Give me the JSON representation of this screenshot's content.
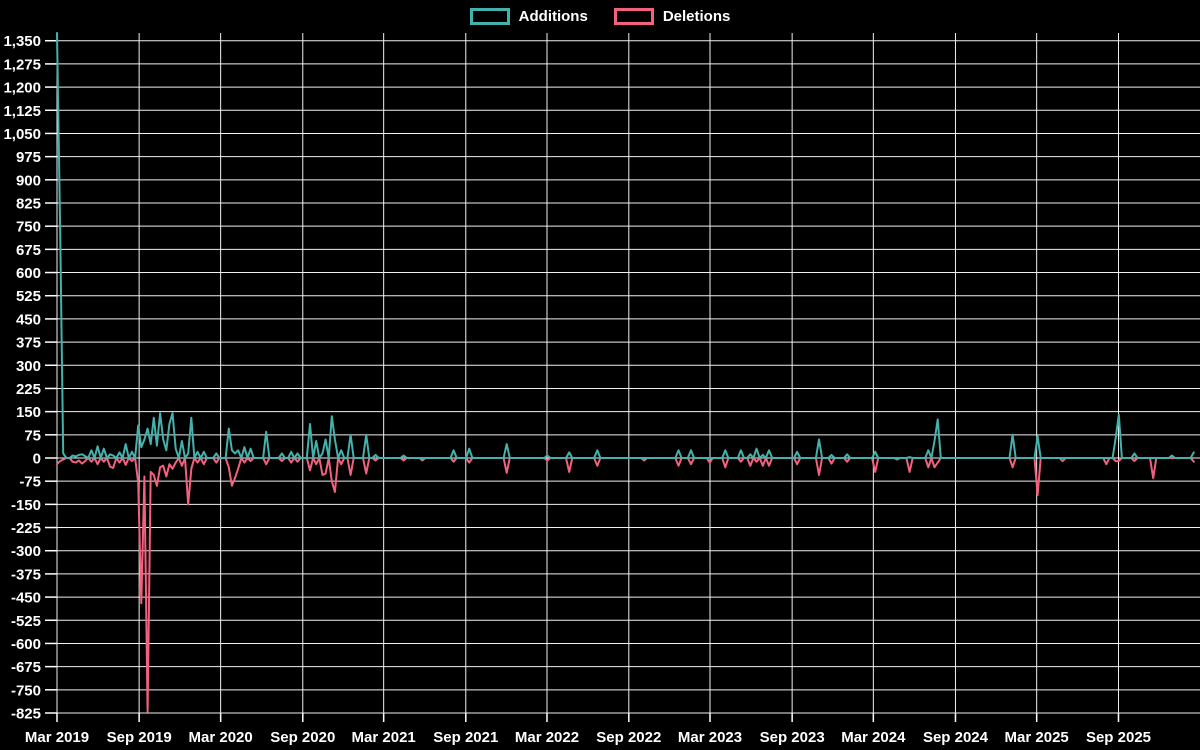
{
  "chart_data": {
    "type": "line",
    "grid": true,
    "legend_position": "top-center",
    "background_color": "#000000",
    "grid_color": "#f0f0f0",
    "text_color": "#ffffff",
    "x_axis": {
      "tick_labels": [
        "Mar 2019",
        "Sep 2019",
        "Mar 2020",
        "Sep 2020",
        "Mar 2021",
        "Sep 2021",
        "Mar 2022",
        "Sep 2022",
        "Mar 2023",
        "Sep 2023",
        "Mar 2024",
        "Sep 2024",
        "Mar 2025",
        "Sep 2025"
      ],
      "tick_weeks": [
        0,
        26.3,
        52.4,
        78.7,
        104.6,
        130.9,
        156.9,
        183.1,
        209.1,
        235.4,
        261.4,
        287.7,
        313.7,
        339.9
      ],
      "weeks_span": 366
    },
    "y_axis": {
      "min": -825,
      "max": 1350,
      "step": 75,
      "tick_labels": [
        "1,350",
        "1,275",
        "1,200",
        "1,125",
        "1,050",
        "975",
        "900",
        "825",
        "750",
        "675",
        "600",
        "525",
        "450",
        "375",
        "300",
        "225",
        "150",
        "75",
        "0",
        "-75",
        "-150",
        "-225",
        "-300",
        "-375",
        "-450",
        "-525",
        "-600",
        "-675",
        "-750",
        "-825"
      ]
    },
    "weeks": 365,
    "series": [
      {
        "name": "Additions",
        "color": "#44B2AC",
        "points": [
          [
            0,
            1375
          ],
          [
            1,
            750
          ],
          [
            2,
            15
          ],
          [
            5,
            8
          ],
          [
            6,
            5
          ],
          [
            7,
            10
          ],
          [
            8,
            12
          ],
          [
            9,
            6
          ],
          [
            11,
            25
          ],
          [
            13,
            38
          ],
          [
            15,
            30
          ],
          [
            17,
            12
          ],
          [
            18,
            8
          ],
          [
            20,
            18
          ],
          [
            22,
            45
          ],
          [
            24,
            20
          ],
          [
            26,
            105
          ],
          [
            27,
            35
          ],
          [
            28,
            60
          ],
          [
            29,
            95
          ],
          [
            30,
            45
          ],
          [
            31,
            130
          ],
          [
            32,
            40
          ],
          [
            33,
            145
          ],
          [
            34,
            60
          ],
          [
            35,
            25
          ],
          [
            36,
            110
          ],
          [
            37,
            145
          ],
          [
            38,
            30
          ],
          [
            40,
            55
          ],
          [
            42,
            15
          ],
          [
            43,
            130
          ],
          [
            45,
            20
          ],
          [
            47,
            20
          ],
          [
            51,
            15
          ],
          [
            55,
            95
          ],
          [
            56,
            25
          ],
          [
            57,
            15
          ],
          [
            58,
            25
          ],
          [
            60,
            35
          ],
          [
            62,
            30
          ],
          [
            67,
            85
          ],
          [
            72,
            15
          ],
          [
            75,
            20
          ],
          [
            77,
            15
          ],
          [
            81,
            110
          ],
          [
            83,
            55
          ],
          [
            85,
            15
          ],
          [
            86,
            60
          ],
          [
            88,
            135
          ],
          [
            89,
            60
          ],
          [
            91,
            25
          ],
          [
            94,
            75
          ],
          [
            99,
            75
          ],
          [
            102,
            10
          ],
          [
            111,
            8
          ],
          [
            127,
            25
          ],
          [
            132,
            30
          ],
          [
            144,
            45
          ],
          [
            157,
            8
          ],
          [
            164,
            18
          ],
          [
            173,
            25
          ],
          [
            199,
            25
          ],
          [
            203,
            25
          ],
          [
            214,
            25
          ],
          [
            219,
            25
          ],
          [
            222,
            12
          ],
          [
            224,
            30
          ],
          [
            226,
            10
          ],
          [
            228,
            25
          ],
          [
            237,
            20
          ],
          [
            244,
            60
          ],
          [
            248,
            10
          ],
          [
            253,
            12
          ],
          [
            262,
            20
          ],
          [
            273,
            3
          ],
          [
            279,
            25
          ],
          [
            281,
            55
          ],
          [
            282,
            125
          ],
          [
            306,
            75
          ],
          [
            314,
            70
          ],
          [
            339,
            65
          ],
          [
            340,
            140
          ],
          [
            345,
            15
          ],
          [
            357,
            8
          ],
          [
            364,
            18
          ]
        ]
      },
      {
        "name": "Deletions",
        "color": "#F2617E",
        "points": [
          [
            0,
            -20
          ],
          [
            1,
            -10
          ],
          [
            2,
            -5
          ],
          [
            5,
            -12
          ],
          [
            6,
            -15
          ],
          [
            7,
            -8
          ],
          [
            8,
            -18
          ],
          [
            9,
            -10
          ],
          [
            11,
            -12
          ],
          [
            13,
            -20
          ],
          [
            15,
            -12
          ],
          [
            17,
            -28
          ],
          [
            18,
            -32
          ],
          [
            20,
            -15
          ],
          [
            22,
            -22
          ],
          [
            24,
            -10
          ],
          [
            26,
            -80
          ],
          [
            27,
            -470
          ],
          [
            28,
            -60
          ],
          [
            29,
            -820
          ],
          [
            30,
            -45
          ],
          [
            31,
            -55
          ],
          [
            32,
            -90
          ],
          [
            33,
            -30
          ],
          [
            34,
            -25
          ],
          [
            35,
            -60
          ],
          [
            36,
            -20
          ],
          [
            37,
            -35
          ],
          [
            38,
            -15
          ],
          [
            40,
            -25
          ],
          [
            42,
            -150
          ],
          [
            43,
            -35
          ],
          [
            45,
            -15
          ],
          [
            47,
            -20
          ],
          [
            51,
            -15
          ],
          [
            55,
            -30
          ],
          [
            56,
            -90
          ],
          [
            57,
            -65
          ],
          [
            58,
            -35
          ],
          [
            60,
            -15
          ],
          [
            62,
            -10
          ],
          [
            67,
            -20
          ],
          [
            72,
            -10
          ],
          [
            75,
            -15
          ],
          [
            77,
            -12
          ],
          [
            81,
            -40
          ],
          [
            83,
            -20
          ],
          [
            85,
            -55
          ],
          [
            86,
            -50
          ],
          [
            88,
            -75
          ],
          [
            89,
            -110
          ],
          [
            91,
            -20
          ],
          [
            94,
            -55
          ],
          [
            99,
            -50
          ],
          [
            102,
            -8
          ],
          [
            111,
            -8
          ],
          [
            117,
            -8
          ],
          [
            127,
            -12
          ],
          [
            132,
            -15
          ],
          [
            144,
            -48
          ],
          [
            157,
            -8
          ],
          [
            164,
            -45
          ],
          [
            173,
            -25
          ],
          [
            188,
            -8
          ],
          [
            199,
            -25
          ],
          [
            203,
            -20
          ],
          [
            209,
            -15
          ],
          [
            214,
            -30
          ],
          [
            219,
            -12
          ],
          [
            222,
            -25
          ],
          [
            224,
            -12
          ],
          [
            226,
            -25
          ],
          [
            228,
            -25
          ],
          [
            237,
            -20
          ],
          [
            244,
            -55
          ],
          [
            248,
            -18
          ],
          [
            253,
            -12
          ],
          [
            262,
            -45
          ],
          [
            269,
            -5
          ],
          [
            273,
            -45
          ],
          [
            279,
            -30
          ],
          [
            281,
            -30
          ],
          [
            282,
            -15
          ],
          [
            306,
            -30
          ],
          [
            314,
            -120
          ],
          [
            322,
            -10
          ],
          [
            336,
            -20
          ],
          [
            339,
            -10
          ],
          [
            340,
            -10
          ],
          [
            345,
            -10
          ],
          [
            351,
            -65
          ],
          [
            364,
            -12
          ]
        ]
      }
    ]
  }
}
